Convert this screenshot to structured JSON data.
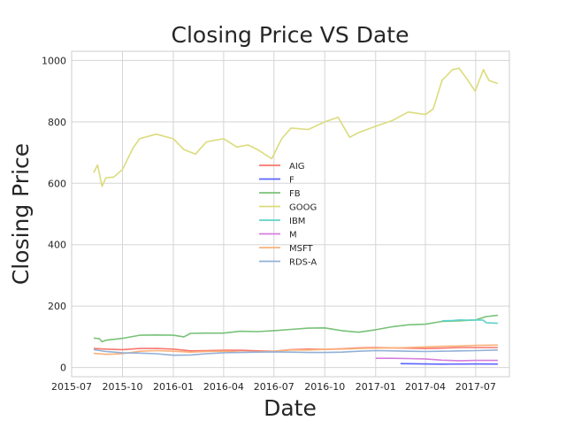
{
  "chart_data": {
    "type": "line",
    "title": "Closing Price VS Date",
    "xlabel": "Date",
    "ylabel": "Closing Price",
    "grid": true,
    "legend_position": "center",
    "xlim": [
      "2015-07-01",
      "2017-08-31"
    ],
    "ylim": [
      -30,
      1030
    ],
    "xticks": [
      "2015-07",
      "2015-10",
      "2016-01",
      "2016-04",
      "2016-07",
      "2016-10",
      "2017-01",
      "2017-04",
      "2017-07"
    ],
    "yticks": [
      0,
      200,
      400,
      600,
      800,
      1000
    ],
    "series": [
      {
        "name": "AIG",
        "color": "#f8766d",
        "x": [
          "2015-08-10",
          "2015-09-01",
          "2015-10-01",
          "2015-11-01",
          "2015-12-01",
          "2016-01-01",
          "2016-02-01",
          "2016-03-01",
          "2016-04-01",
          "2016-05-01",
          "2016-06-01",
          "2016-07-01",
          "2016-08-01",
          "2016-09-01",
          "2016-10-01",
          "2016-11-01",
          "2016-12-01",
          "2017-01-01",
          "2017-02-01",
          "2017-03-01",
          "2017-04-01",
          "2017-05-01",
          "2017-06-01",
          "2017-07-01",
          "2017-08-10"
        ],
        "y": [
          62,
          60,
          58,
          62,
          62,
          60,
          54,
          55,
          56,
          56,
          54,
          53,
          58,
          60,
          59,
          61,
          64,
          65,
          64,
          63,
          62,
          63,
          65,
          65,
          65
        ]
      },
      {
        "name": "F",
        "color": "#5c64ff",
        "x": [
          "2017-02-15",
          "2017-03-01",
          "2017-04-01",
          "2017-05-01",
          "2017-06-01",
          "2017-07-01",
          "2017-08-10"
        ],
        "y": [
          12.5,
          12.2,
          11.6,
          11.0,
          11.3,
          11.5,
          11.1
        ]
      },
      {
        "name": "FB",
        "color": "#78c278",
        "x": [
          "2015-08-10",
          "2015-08-20",
          "2015-08-25",
          "2015-09-01",
          "2015-10-01",
          "2015-11-01",
          "2015-12-01",
          "2016-01-01",
          "2016-01-20",
          "2016-02-01",
          "2016-03-01",
          "2016-04-01",
          "2016-05-01",
          "2016-06-01",
          "2016-07-01",
          "2016-08-01",
          "2016-09-01",
          "2016-10-01",
          "2016-11-01",
          "2016-12-01",
          "2017-01-01",
          "2017-02-01",
          "2017-03-01",
          "2017-04-01",
          "2017-05-01",
          "2017-06-01",
          "2017-07-01",
          "2017-07-20",
          "2017-08-10"
        ],
        "y": [
          96,
          94,
          84,
          89,
          95,
          105,
          106,
          105,
          100,
          111,
          112,
          112,
          118,
          117,
          120,
          124,
          128,
          129,
          120,
          115,
          123,
          133,
          139,
          141,
          150,
          152,
          155,
          166,
          170
        ]
      },
      {
        "name": "GOOG",
        "color": "#dbdb7c",
        "x": [
          "2015-08-10",
          "2015-08-17",
          "2015-08-25",
          "2015-09-01",
          "2015-09-15",
          "2015-10-01",
          "2015-10-20",
          "2015-11-01",
          "2015-12-01",
          "2016-01-01",
          "2016-01-20",
          "2016-02-10",
          "2016-03-01",
          "2016-04-01",
          "2016-04-25",
          "2016-05-15",
          "2016-06-01",
          "2016-06-27",
          "2016-07-15",
          "2016-08-01",
          "2016-09-01",
          "2016-10-01",
          "2016-10-25",
          "2016-11-15",
          "2016-12-01",
          "2017-01-01",
          "2017-02-01",
          "2017-03-01",
          "2017-04-01",
          "2017-04-15",
          "2017-05-01",
          "2017-05-20",
          "2017-06-01",
          "2017-06-15",
          "2017-06-30",
          "2017-07-15",
          "2017-07-25",
          "2017-08-10"
        ],
        "y": [
          635,
          660,
          590,
          618,
          620,
          645,
          715,
          745,
          760,
          745,
          710,
          695,
          735,
          745,
          718,
          725,
          710,
          680,
          745,
          780,
          775,
          800,
          815,
          750,
          765,
          786,
          805,
          832,
          824,
          842,
          935,
          970,
          975,
          940,
          900,
          970,
          935,
          925
        ]
      },
      {
        "name": "IBM",
        "color": "#5fd3c8",
        "x": [
          "2017-05-01",
          "2017-05-20",
          "2017-06-01",
          "2017-06-15",
          "2017-07-01",
          "2017-07-15",
          "2017-07-20",
          "2017-08-10"
        ],
        "y": [
          152,
          153,
          155,
          154,
          155,
          154,
          146,
          144
        ]
      },
      {
        "name": "M",
        "color": "#d67ddd",
        "x": [
          "2017-01-01",
          "2017-02-01",
          "2017-03-01",
          "2017-04-01",
          "2017-05-01",
          "2017-06-01",
          "2017-07-01",
          "2017-08-10"
        ],
        "y": [
          30,
          30,
          29,
          28,
          24,
          22,
          23,
          23
        ]
      },
      {
        "name": "MSFT",
        "color": "#f9b27a",
        "x": [
          "2015-08-10",
          "2015-09-01",
          "2015-10-01",
          "2015-11-01",
          "2015-12-01",
          "2016-01-01",
          "2016-02-01",
          "2016-03-01",
          "2016-04-01",
          "2016-05-01",
          "2016-06-01",
          "2016-07-01",
          "2016-08-01",
          "2016-09-01",
          "2016-10-01",
          "2016-11-01",
          "2016-12-01",
          "2017-01-01",
          "2017-02-01",
          "2017-03-01",
          "2017-04-01",
          "2017-05-01",
          "2017-06-01",
          "2017-07-01",
          "2017-08-10"
        ],
        "y": [
          46,
          43,
          45,
          53,
          55,
          53,
          50,
          52,
          53,
          50,
          51,
          53,
          57,
          57,
          59,
          60,
          62,
          63,
          64,
          65,
          67,
          69,
          70,
          72,
          73
        ]
      },
      {
        "name": "RDS-A",
        "color": "#92b0d6",
        "x": [
          "2015-08-10",
          "2015-09-01",
          "2015-10-01",
          "2015-11-01",
          "2015-12-01",
          "2016-01-01",
          "2016-02-01",
          "2016-03-01",
          "2016-04-01",
          "2016-05-01",
          "2016-06-01",
          "2016-07-01",
          "2016-08-01",
          "2016-09-01",
          "2016-10-01",
          "2016-11-01",
          "2016-12-01",
          "2017-01-01",
          "2017-02-01",
          "2017-03-01",
          "2017-04-01",
          "2017-05-01",
          "2017-06-01",
          "2017-07-01",
          "2017-08-10"
        ],
        "y": [
          58,
          52,
          48,
          47,
          45,
          40,
          41,
          45,
          48,
          49,
          50,
          51,
          50,
          49,
          49,
          50,
          53,
          55,
          54,
          53,
          52,
          53,
          54,
          55,
          57
        ]
      }
    ]
  }
}
